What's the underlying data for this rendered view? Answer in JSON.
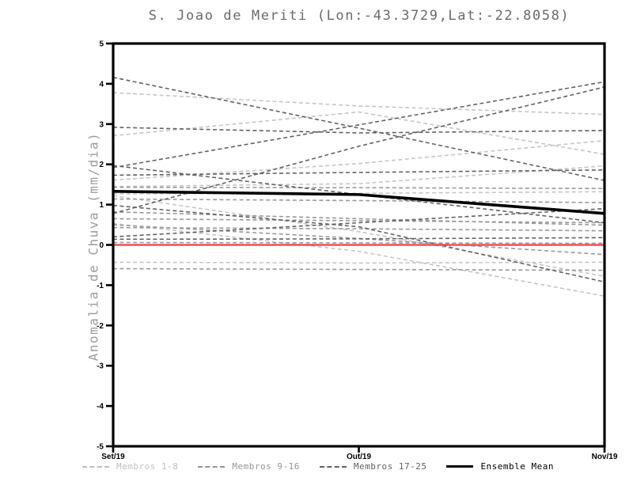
{
  "chart_data": {
    "type": "line",
    "title": "S. Joao de Meriti (Lon:-43.3729,Lat:-22.8058)",
    "ylabel": "Anomalia de Chuva (mm/dia)",
    "x_categories": [
      "Set/19",
      "Out/19",
      "Nov/19"
    ],
    "ylim": [
      -5,
      5
    ],
    "y_ticks": [
      5,
      4,
      3,
      2,
      1,
      0,
      -1,
      -2,
      -3,
      -4,
      -5
    ],
    "grid": false,
    "legend_position": "bottom",
    "series_groups": [
      {
        "name": "Membros 1-8",
        "color": "#c6c6c6",
        "line_style": "dashed",
        "members": [
          [
            3.78,
            3.45,
            3.24
          ],
          [
            2.71,
            3.3,
            2.25
          ],
          [
            1.61,
            2.02,
            2.59
          ],
          [
            1.45,
            1.52,
            1.96
          ],
          [
            1.27,
            1.28,
            1.32
          ],
          [
            1.22,
            0.33,
            -0.78
          ],
          [
            0.53,
            -0.16,
            -1.27
          ],
          [
            -0.43,
            -0.45,
            -0.43
          ]
        ]
      },
      {
        "name": "Membros 9-16",
        "color": "#9a9a9a",
        "line_style": "dashed",
        "members": [
          [
            1.43,
            1.42,
            1.4
          ],
          [
            1.14,
            1.1,
            1.05
          ],
          [
            0.82,
            0.65,
            0.49
          ],
          [
            0.65,
            0.6,
            0.55
          ],
          [
            0.43,
            0.4,
            0.35
          ],
          [
            0.06,
            0.05,
            0.04
          ],
          [
            -0.59,
            -0.61,
            -0.63
          ],
          [
            0.5,
            0.16,
            -0.24
          ]
        ]
      },
      {
        "name": "Membros 17-25",
        "color": "#636363",
        "line_style": "dashed",
        "members": [
          [
            4.16,
            2.9,
            1.6
          ],
          [
            2.92,
            2.78,
            2.84
          ],
          [
            1.92,
            2.98,
            4.05
          ],
          [
            1.97,
            1.25,
            0.55
          ],
          [
            1.73,
            1.8,
            1.86
          ],
          [
            0.98,
            0.45,
            -0.92
          ],
          [
            0.2,
            0.55,
            0.9
          ],
          [
            0.14,
            0.15,
            0.18
          ],
          [
            0.78,
            2.45,
            3.92
          ]
        ]
      }
    ],
    "zero_line": {
      "color": "#f04f4f",
      "values": [
        0,
        0,
        0
      ]
    },
    "ensemble_mean": {
      "name": "Ensemble Mean",
      "color": "#000000",
      "values": [
        1.33,
        1.25,
        0.78
      ]
    }
  },
  "legend": {
    "items": [
      {
        "label": "Membros 1-8",
        "color": "#c0c0c0",
        "style": "dashed"
      },
      {
        "label": "Membros 9-16",
        "color": "#969696",
        "style": "dashed"
      },
      {
        "label": "Membros 17-25",
        "color": "#626262",
        "style": "dashed"
      },
      {
        "label": "Ensemble Mean",
        "color": "#000000",
        "style": "solid"
      }
    ]
  }
}
